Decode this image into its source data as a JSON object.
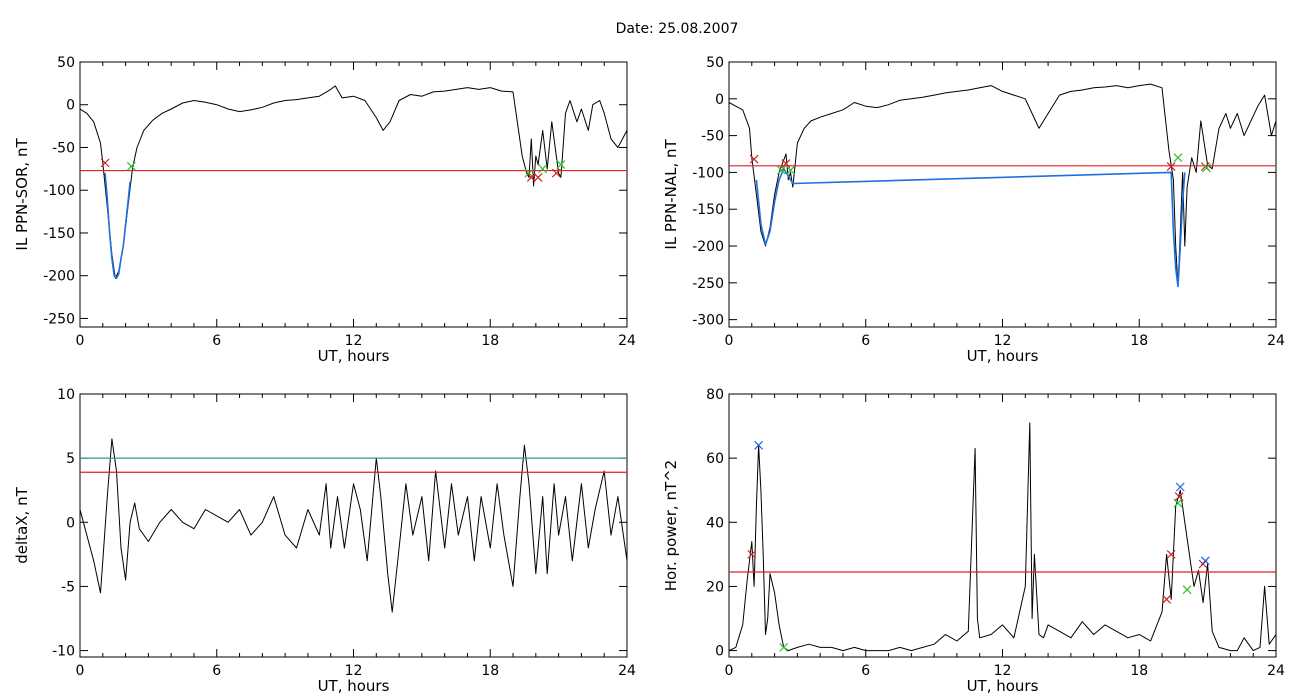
{
  "title": "Date:  25.08.2007",
  "colors": {
    "threshold_red": "#e02020",
    "threshold_teal": "#2a9d9d",
    "event_blue": "#1f6fe0",
    "cross_green": "#2bbf2b",
    "cross_red": "#d02020",
    "cross_blue": "#2060e0",
    "trace": "#000000"
  },
  "chart_data": [
    {
      "type": "line",
      "id": "sor",
      "xlabel": "UT, hours",
      "ylabel": "IL PPN-SOR, nT",
      "xlim": [
        0,
        24
      ],
      "ylim": [
        -260,
        50
      ],
      "xticks": [
        "0",
        "6",
        "12",
        "18",
        "24"
      ],
      "yticks": [
        "50",
        "0",
        "-50",
        "-100",
        "-150",
        "-200",
        "-250"
      ],
      "ytick_values": [
        50,
        0,
        -50,
        -100,
        -150,
        -200,
        -250
      ],
      "threshold": {
        "value": -77,
        "color": "red"
      },
      "series": [
        {
          "x": [
            0,
            0.3,
            0.6,
            0.9,
            1.0,
            1.2,
            1.4,
            1.55,
            1.7,
            1.9,
            2.1,
            2.3,
            2.5,
            2.8,
            3.2,
            3.6,
            4.0,
            4.5,
            5.0,
            5.5,
            6.0,
            6.5,
            7.0,
            7.5,
            8.0,
            8.5,
            9.0,
            9.5,
            10.0,
            10.5,
            11.0,
            11.2,
            11.5,
            12.0,
            12.5,
            13.0,
            13.3,
            13.6,
            14.0,
            14.5,
            15.0,
            15.5,
            16.0,
            16.5,
            17.0,
            17.5,
            18.0,
            18.5,
            19.0,
            19.4,
            19.6,
            19.7,
            19.8,
            19.9,
            20.0,
            20.1,
            20.2,
            20.3,
            20.5,
            20.7,
            20.9,
            21.0,
            21.1,
            21.3,
            21.5,
            21.8,
            22.0,
            22.3,
            22.5,
            22.8,
            23.0,
            23.3,
            23.6,
            24.0
          ],
          "y": [
            -5,
            -10,
            -20,
            -45,
            -68,
            -120,
            -175,
            -203,
            -195,
            -165,
            -120,
            -75,
            -50,
            -30,
            -18,
            -10,
            -5,
            2,
            5,
            3,
            0,
            -5,
            -8,
            -6,
            -3,
            2,
            5,
            6,
            8,
            10,
            18,
            22,
            8,
            10,
            5,
            -15,
            -30,
            -20,
            5,
            12,
            10,
            15,
            16,
            18,
            20,
            18,
            20,
            16,
            15,
            -60,
            -80,
            -85,
            -40,
            -95,
            -60,
            -70,
            -50,
            -30,
            -75,
            -20,
            -60,
            -80,
            -85,
            -10,
            5,
            -20,
            -5,
            -30,
            0,
            5,
            -10,
            -40,
            -50,
            -30
          ]
        },
        {
          "x": [
            1.1,
            1.2,
            1.3,
            1.4,
            1.5,
            1.6,
            1.7,
            1.8,
            1.9,
            2.0,
            2.1,
            2.2
          ],
          "y": [
            -80,
            -110,
            -150,
            -180,
            -200,
            -203,
            -198,
            -180,
            -165,
            -140,
            -115,
            -90
          ]
        }
      ],
      "markers": [
        {
          "x": 1.1,
          "y": -68,
          "color": "red"
        },
        {
          "x": 2.25,
          "y": -72,
          "color": "green"
        },
        {
          "x": 19.7,
          "y": -80,
          "color": "green"
        },
        {
          "x": 19.8,
          "y": -85,
          "color": "red"
        },
        {
          "x": 20.1,
          "y": -85,
          "color": "red"
        },
        {
          "x": 20.3,
          "y": -75,
          "color": "green"
        },
        {
          "x": 20.9,
          "y": -80,
          "color": "red"
        },
        {
          "x": 21.1,
          "y": -70,
          "color": "green"
        }
      ]
    },
    {
      "type": "line",
      "id": "nal",
      "xlabel": "UT, hours",
      "ylabel": "IL PPN-NAL, nT",
      "xlim": [
        0,
        24
      ],
      "ylim": [
        -310,
        50
      ],
      "xticks": [
        "0",
        "6",
        "12",
        "18",
        "24"
      ],
      "yticks": [
        "50",
        "0",
        "-50",
        "-100",
        "-150",
        "-200",
        "-250",
        "-300"
      ],
      "ytick_values": [
        50,
        0,
        -50,
        -100,
        -150,
        -200,
        -250,
        -300
      ],
      "threshold": {
        "value": -91,
        "color": "red"
      },
      "series": [
        {
          "x": [
            0,
            0.3,
            0.6,
            0.9,
            1.0,
            1.2,
            1.4,
            1.6,
            1.8,
            2.0,
            2.2,
            2.5,
            2.6,
            2.7,
            2.8,
            3.0,
            3.3,
            3.6,
            4.0,
            4.5,
            5.0,
            5.5,
            6.0,
            6.5,
            7.0,
            7.5,
            8.0,
            8.5,
            9.0,
            9.5,
            10.0,
            10.5,
            11.0,
            11.5,
            12.0,
            12.5,
            13.0,
            13.3,
            13.6,
            14.0,
            14.5,
            15.0,
            15.5,
            16.0,
            16.5,
            17.0,
            17.5,
            18.0,
            18.5,
            19.0,
            19.3,
            19.5,
            19.6,
            19.7,
            19.8,
            19.9,
            20.0,
            20.1,
            20.3,
            20.5,
            20.7,
            21.0,
            21.2,
            21.5,
            21.8,
            22.0,
            22.3,
            22.6,
            22.9,
            23.2,
            23.5,
            23.8,
            24.0
          ],
          "y": [
            -5,
            -10,
            -15,
            -40,
            -80,
            -130,
            -180,
            -200,
            -175,
            -130,
            -100,
            -75,
            -110,
            -100,
            -120,
            -60,
            -40,
            -30,
            -25,
            -20,
            -15,
            -5,
            -10,
            -12,
            -8,
            -2,
            0,
            2,
            5,
            8,
            10,
            12,
            15,
            18,
            10,
            5,
            0,
            -20,
            -40,
            -20,
            5,
            10,
            12,
            15,
            16,
            18,
            15,
            18,
            20,
            15,
            -70,
            -110,
            -200,
            -255,
            -180,
            -100,
            -200,
            -120,
            -80,
            -100,
            -30,
            -90,
            -95,
            -40,
            -20,
            -40,
            -20,
            -50,
            -30,
            -10,
            5,
            -50,
            -30
          ]
        },
        {
          "x": [
            1.2,
            1.4,
            1.6,
            1.8,
            2.0,
            2.2,
            2.4,
            2.6,
            2.8,
            19.4,
            19.5,
            19.6,
            19.7,
            19.8,
            19.9,
            20.0
          ],
          "y": [
            -110,
            -170,
            -198,
            -180,
            -140,
            -110,
            -95,
            -105,
            -115,
            -100,
            -180,
            -230,
            -255,
            -200,
            -140,
            -100
          ]
        }
      ],
      "markers": [
        {
          "x": 1.1,
          "y": -82,
          "color": "red"
        },
        {
          "x": 2.3,
          "y": -97,
          "color": "green"
        },
        {
          "x": 2.5,
          "y": -88,
          "color": "red"
        },
        {
          "x": 2.7,
          "y": -97,
          "color": "green"
        },
        {
          "x": 19.4,
          "y": -92,
          "color": "red"
        },
        {
          "x": 19.7,
          "y": -80,
          "color": "green"
        },
        {
          "x": 20.9,
          "y": -92,
          "color": "red"
        },
        {
          "x": 20.95,
          "y": -94,
          "color": "green"
        }
      ]
    },
    {
      "type": "line",
      "id": "deltax",
      "xlabel": "UT, hours",
      "ylabel": "deltaX, nT",
      "xlim": [
        0,
        24
      ],
      "ylim": [
        -10.5,
        10
      ],
      "xticks": [
        "0",
        "6",
        "12",
        "18",
        "24"
      ],
      "yticks": [
        "10",
        "5",
        "0",
        "-5",
        "-10"
      ],
      "ytick_values": [
        10,
        5,
        0,
        -5,
        -10
      ],
      "threshold": {
        "value": 3.9,
        "color": "red"
      },
      "threshold2": {
        "value": 5.0,
        "color": "teal"
      },
      "series": [
        {
          "x": [
            0,
            0.3,
            0.6,
            0.9,
            1.0,
            1.2,
            1.4,
            1.6,
            1.8,
            2.0,
            2.2,
            2.4,
            2.6,
            3.0,
            3.5,
            4.0,
            4.5,
            5.0,
            5.5,
            6.0,
            6.5,
            7.0,
            7.5,
            8.0,
            8.5,
            9.0,
            9.5,
            10.0,
            10.5,
            10.8,
            11.0,
            11.3,
            11.6,
            12.0,
            12.3,
            12.6,
            13.0,
            13.2,
            13.5,
            13.7,
            14.0,
            14.3,
            14.6,
            15.0,
            15.3,
            15.6,
            16.0,
            16.3,
            16.6,
            17.0,
            17.3,
            17.6,
            18.0,
            18.3,
            18.6,
            19.0,
            19.3,
            19.5,
            19.7,
            20.0,
            20.3,
            20.5,
            20.8,
            21.0,
            21.3,
            21.6,
            22.0,
            22.3,
            22.6,
            23.0,
            23.3,
            23.6,
            24.0
          ],
          "y": [
            1,
            -1,
            -3,
            -5.5,
            -3,
            2,
            6.5,
            4,
            -2,
            -4.5,
            0,
            1.5,
            -0.5,
            -1.5,
            0,
            1,
            0,
            -0.5,
            1,
            0.5,
            0,
            1,
            -1,
            0,
            2,
            -1,
            -2,
            1,
            -1,
            3,
            -2,
            2,
            -2,
            3,
            1,
            -3,
            5,
            2,
            -4,
            -7,
            -2,
            3,
            -1,
            2,
            -3,
            4,
            -2,
            3,
            -1,
            2,
            -3,
            2,
            -2,
            3,
            -1,
            -5,
            2,
            6,
            3,
            -4,
            2,
            -4,
            3,
            -1,
            2,
            -3,
            3,
            -2,
            1,
            4,
            -1,
            2,
            -3
          ]
        }
      ],
      "markers": []
    },
    {
      "type": "line",
      "id": "power",
      "xlabel": "UT, hours",
      "ylabel": "Hor. power, nT^2",
      "xlim": [
        0,
        24
      ],
      "ylim": [
        -2,
        80
      ],
      "xticks": [
        "0",
        "6",
        "12",
        "18",
        "24"
      ],
      "yticks": [
        "80",
        "60",
        "40",
        "20",
        "0"
      ],
      "ytick_values": [
        80,
        60,
        40,
        20,
        0
      ],
      "threshold": {
        "value": 24.5,
        "color": "red"
      },
      "series": [
        {
          "x": [
            0,
            0.3,
            0.6,
            0.8,
            1.0,
            1.1,
            1.2,
            1.3,
            1.4,
            1.5,
            1.6,
            1.7,
            1.8,
            2.0,
            2.2,
            2.4,
            2.6,
            3.0,
            3.5,
            4.0,
            4.5,
            5.0,
            5.5,
            6.0,
            6.5,
            7.0,
            7.5,
            8.0,
            8.5,
            9.0,
            9.5,
            10.0,
            10.5,
            10.8,
            10.9,
            11.0,
            11.5,
            12.0,
            12.5,
            13.0,
            13.2,
            13.3,
            13.4,
            13.6,
            13.8,
            14.0,
            14.5,
            15.0,
            15.5,
            16.0,
            16.5,
            17.0,
            17.5,
            18.0,
            18.5,
            19.0,
            19.2,
            19.4,
            19.6,
            19.8,
            20.0,
            20.2,
            20.4,
            20.6,
            20.8,
            21.0,
            21.2,
            21.5,
            22.0,
            22.3,
            22.6,
            23.0,
            23.3,
            23.5,
            23.7,
            24.0
          ],
          "y": [
            0,
            1,
            8,
            22,
            34,
            20,
            45,
            64,
            50,
            30,
            5,
            10,
            24,
            18,
            8,
            1,
            0,
            1,
            2,
            1,
            1,
            0,
            1,
            0,
            0,
            0,
            1,
            0,
            1,
            2,
            5,
            3,
            6,
            63,
            10,
            4,
            5,
            8,
            4,
            20,
            71,
            10,
            30,
            5,
            4,
            8,
            6,
            4,
            9,
            5,
            8,
            6,
            4,
            5,
            3,
            12,
            30,
            16,
            45,
            50,
            40,
            30,
            20,
            25,
            15,
            27,
            6,
            1,
            0,
            0,
            4,
            0,
            1,
            20,
            2,
            5
          ]
        }
      ],
      "markers": [
        {
          "x": 1.0,
          "y": 30,
          "color": "red"
        },
        {
          "x": 1.3,
          "y": 64,
          "color": "blue"
        },
        {
          "x": 2.4,
          "y": 1,
          "color": "green"
        },
        {
          "x": 19.2,
          "y": 16,
          "color": "red"
        },
        {
          "x": 19.4,
          "y": 30,
          "color": "red"
        },
        {
          "x": 19.7,
          "y": 46,
          "color": "green"
        },
        {
          "x": 19.75,
          "y": 48,
          "color": "red"
        },
        {
          "x": 19.8,
          "y": 51,
          "color": "blue"
        },
        {
          "x": 20.1,
          "y": 19,
          "color": "green"
        },
        {
          "x": 20.8,
          "y": 27,
          "color": "red"
        },
        {
          "x": 20.9,
          "y": 28,
          "color": "blue"
        }
      ]
    }
  ]
}
